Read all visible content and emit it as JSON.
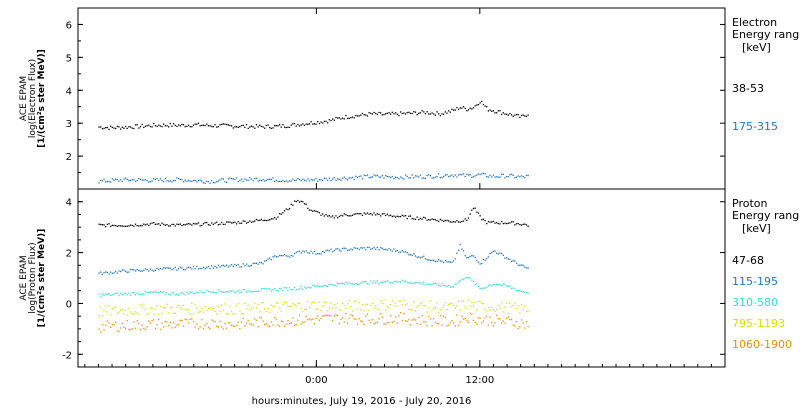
{
  "chart_data": [
    {
      "type": "scatter",
      "panel": "electron",
      "ylabel_lines": [
        "ACE EPAM",
        "log(Electron Flux)",
        "[1/(cm²s ster MeV)]"
      ],
      "ylim": [
        1,
        6.5
      ],
      "y_ticks": [
        2,
        3,
        4,
        5,
        6
      ],
      "legend_title_lines": [
        "Electron",
        "Energy ranges",
        "[keV]"
      ],
      "series": [
        {
          "name": "38-53",
          "color": "#000000",
          "x": [
            -16,
            -15,
            -14,
            -13,
            -12,
            -11,
            -10,
            -9,
            -8,
            -7,
            -6,
            -5,
            -4,
            -3,
            -2,
            -1,
            0,
            1,
            2,
            3,
            4,
            5,
            6,
            7,
            8,
            9,
            10,
            10.5,
            11,
            11.5,
            12,
            12.5,
            13,
            13.5,
            14,
            14.5,
            15,
            15.5
          ],
          "y": [
            2.9,
            2.88,
            2.9,
            2.92,
            2.95,
            2.96,
            2.95,
            2.97,
            2.95,
            2.94,
            2.93,
            2.92,
            2.91,
            2.92,
            2.95,
            3.0,
            3.05,
            3.1,
            3.2,
            3.25,
            3.3,
            3.28,
            3.3,
            3.32,
            3.35,
            3.3,
            3.4,
            3.5,
            3.45,
            3.5,
            3.7,
            3.45,
            3.4,
            3.35,
            3.3,
            3.25,
            3.2,
            3.3
          ]
        },
        {
          "name": "175-315",
          "color": "#1f77c4",
          "x": [
            -16,
            -14,
            -12,
            -10,
            -8,
            -6,
            -4,
            -2,
            0,
            2,
            4,
            6,
            8,
            10,
            11,
            12,
            13,
            14,
            15,
            15.5
          ],
          "y": [
            1.25,
            1.3,
            1.28,
            1.3,
            1.25,
            1.3,
            1.32,
            1.28,
            1.3,
            1.35,
            1.4,
            1.38,
            1.4,
            1.45,
            1.42,
            1.45,
            1.4,
            1.42,
            1.38,
            1.4
          ]
        }
      ]
    },
    {
      "type": "scatter",
      "panel": "proton",
      "ylabel_lines": [
        "ACE EPAM",
        "log(Proton Flux)",
        "[1/(cm²s ster MeV)]"
      ],
      "ylim": [
        -2.5,
        4.5
      ],
      "y_ticks": [
        -2,
        0,
        2,
        4
      ],
      "xlabel": "hours:minutes, July 19, 2016 - July 20, 2016",
      "x_ticks": [
        {
          "value": 0,
          "label": "0:00"
        },
        {
          "value": 12,
          "label": "12:00"
        }
      ],
      "xlim": [
        -17.5,
        30
      ],
      "legend_title_lines": [
        "Proton",
        "Energy ranges",
        "[keV]"
      ],
      "series": [
        {
          "name": "47-68",
          "color": "#000000",
          "x": [
            -16,
            -14,
            -12,
            -10,
            -8,
            -6,
            -4,
            -3,
            -2,
            -1.5,
            -1,
            -0.5,
            0,
            1,
            2,
            4,
            6,
            8,
            10,
            11,
            11.5,
            12,
            12.5,
            13,
            14,
            15,
            15.5
          ],
          "y": [
            3.1,
            3.1,
            3.15,
            3.1,
            3.15,
            3.2,
            3.3,
            3.4,
            3.8,
            4.1,
            4.0,
            3.7,
            3.6,
            3.4,
            3.5,
            3.55,
            3.45,
            3.35,
            3.25,
            3.3,
            3.8,
            3.4,
            3.2,
            3.2,
            3.2,
            3.15,
            3.1
          ]
        },
        {
          "name": "115-195",
          "color": "#1f77c4",
          "x": [
            -16,
            -14,
            -12,
            -10,
            -8,
            -6,
            -4,
            -3,
            -2,
            -1,
            0,
            1,
            2,
            4,
            6,
            8,
            10,
            10.5,
            11,
            11.5,
            12,
            13,
            14,
            15,
            15.5
          ],
          "y": [
            1.2,
            1.3,
            1.35,
            1.4,
            1.45,
            1.5,
            1.6,
            1.9,
            1.9,
            2.1,
            2.0,
            2.1,
            2.15,
            2.2,
            2.1,
            1.8,
            1.6,
            2.3,
            1.8,
            1.9,
            1.6,
            2.1,
            1.8,
            1.5,
            1.4
          ]
        },
        {
          "name": "310-580",
          "color": "#2ee0d0",
          "x": [
            -16,
            -14,
            -12,
            -10,
            -8,
            -6,
            -4,
            -2,
            0,
            2,
            4,
            6,
            8,
            10,
            11,
            12,
            13,
            14,
            15,
            15.5
          ],
          "y": [
            0.35,
            0.4,
            0.45,
            0.4,
            0.5,
            0.5,
            0.55,
            0.6,
            0.7,
            0.8,
            0.85,
            0.9,
            0.8,
            0.7,
            1.1,
            0.6,
            0.8,
            0.7,
            0.5,
            0.45
          ]
        },
        {
          "name": "795-1193",
          "color": "#d8e000",
          "x": [
            -16,
            -14,
            -12,
            -10,
            -8,
            -6,
            -4,
            -2,
            0,
            2,
            4,
            6,
            8,
            10,
            11,
            12,
            13,
            14,
            15,
            15.5
          ],
          "y": [
            -0.3,
            -0.25,
            -0.2,
            -0.2,
            -0.15,
            -0.2,
            -0.15,
            -0.1,
            -0.05,
            -0.1,
            -0.05,
            0,
            -0.1,
            -0.15,
            0,
            -0.1,
            -0.1,
            -0.15,
            -0.2,
            -0.2
          ]
        },
        {
          "name": "1060-1900",
          "color": "#f08c00",
          "x": [
            -16,
            -14,
            -12,
            -10,
            -8,
            -6,
            -4,
            -2,
            0,
            2,
            4,
            6,
            8,
            10,
            11,
            12,
            13,
            14,
            15,
            15.5
          ],
          "y": [
            -0.9,
            -0.85,
            -0.8,
            -0.8,
            -0.75,
            -0.8,
            -0.7,
            -0.65,
            -0.6,
            -0.55,
            -0.6,
            -0.55,
            -0.65,
            -0.7,
            -0.5,
            -0.6,
            -0.65,
            -0.7,
            -0.75,
            -0.8
          ]
        }
      ]
    }
  ]
}
